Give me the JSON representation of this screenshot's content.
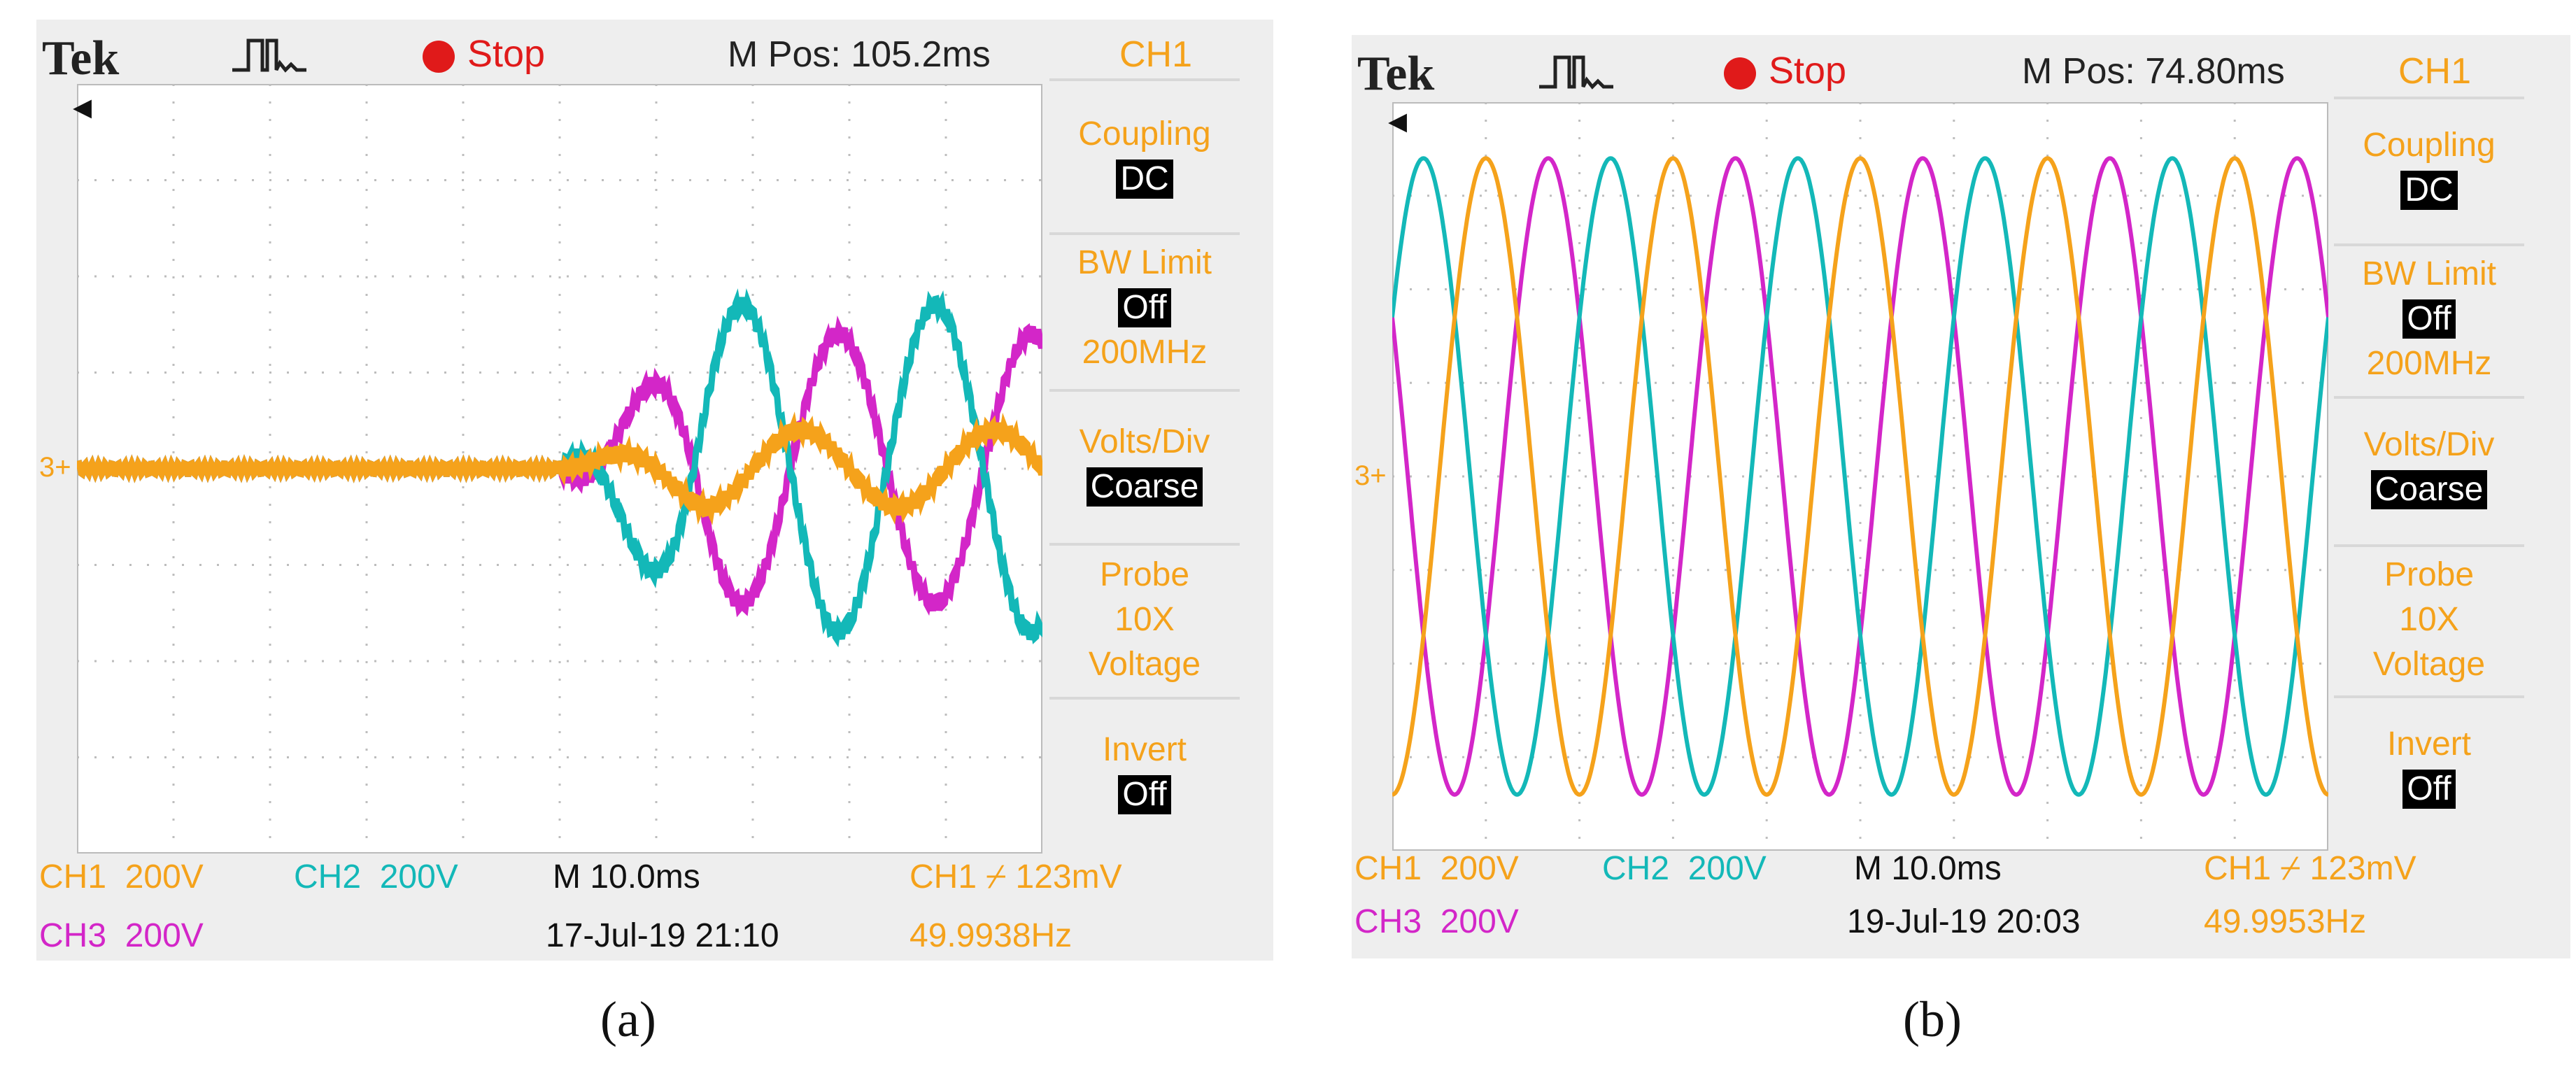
{
  "panels": [
    {
      "id": "a",
      "brand": "Tek",
      "status": "Stop",
      "mpos": "M Pos: 105.2ms",
      "channel_title": "CH1",
      "menu": [
        {
          "label": "Coupling",
          "value": "DC",
          "extra": ""
        },
        {
          "label": "BW Limit",
          "value": "Off",
          "extra": "200MHz"
        },
        {
          "label": "Volts/Div",
          "value": "Coarse",
          "extra": ""
        },
        {
          "label": "Probe",
          "value": "",
          "extra": "10X Voltage"
        },
        {
          "label": "Invert",
          "value": "Off",
          "extra": ""
        }
      ],
      "bottom": {
        "ch1": "CH1  200V",
        "ch2": "CH2  200V",
        "ch3": "CH3  200V",
        "time": "M 10.0ms",
        "date": "17-Jul-19 21:10",
        "trigger": "CH1 ⌿ 123mV",
        "freq": "49.9938Hz"
      },
      "marker": "3+",
      "caption": "(a)"
    },
    {
      "id": "b",
      "brand": "Tek",
      "status": "Stop",
      "mpos": "M Pos: 74.80ms",
      "channel_title": "CH1",
      "menu": [
        {
          "label": "Coupling",
          "value": "DC",
          "extra": ""
        },
        {
          "label": "BW Limit",
          "value": "Off",
          "extra": "200MHz"
        },
        {
          "label": "Volts/Div",
          "value": "Coarse",
          "extra": ""
        },
        {
          "label": "Probe",
          "value": "",
          "extra": "10X Voltage"
        },
        {
          "label": "Invert",
          "value": "Off",
          "extra": ""
        }
      ],
      "bottom": {
        "ch1": "CH1  200V",
        "ch2": "CH2  200V",
        "ch3": "CH3  200V",
        "time": "M 10.0ms",
        "date": "19-Jul-19 20:03",
        "trigger": "CH1 ⌿ 123mV",
        "freq": "49.9953Hz"
      },
      "marker": "3+",
      "caption": "(b)"
    }
  ],
  "colors": {
    "ch1": "#f5a21b",
    "ch2": "#13b8b8",
    "ch3": "#d326c8",
    "stop": "#e01a1a"
  },
  "chart_data": [
    {
      "type": "line",
      "panel": "a",
      "xlabel": "",
      "ylabel": "",
      "xlim": [
        0,
        100
      ],
      "ylim": [
        -400,
        400
      ],
      "x_unit": "ms",
      "y_unit": "V",
      "series": [
        {
          "channel": "CH1",
          "color": "#f5a21b",
          "pre_amp": 0,
          "post_amp": 40,
          "freq_hz": 50,
          "phase_deg": 0,
          "t_start": 50
        },
        {
          "channel": "CH2",
          "color": "#13b8b8",
          "pre_amp": 0,
          "post_amp": 170,
          "freq_hz": 50,
          "phase_deg": 110,
          "t_start": 50
        },
        {
          "channel": "CH3",
          "color": "#d326c8",
          "pre_amp": 0,
          "post_amp": 140,
          "freq_hz": 50,
          "phase_deg": -70,
          "t_start": 50
        }
      ]
    },
    {
      "type": "line",
      "panel": "b",
      "xlabel": "",
      "ylabel": "",
      "xlim": [
        0,
        100
      ],
      "ylim": [
        -400,
        400
      ],
      "x_unit": "ms",
      "y_unit": "V",
      "series": [
        {
          "channel": "CH1",
          "color": "#f5a21b",
          "amp": 340,
          "freq_hz": 50,
          "phase_deg": -90
        },
        {
          "channel": "CH2",
          "color": "#13b8b8",
          "amp": 340,
          "freq_hz": 50,
          "phase_deg": 30
        },
        {
          "channel": "CH3",
          "color": "#d326c8",
          "amp": 340,
          "freq_hz": 50,
          "phase_deg": 150
        }
      ]
    }
  ]
}
